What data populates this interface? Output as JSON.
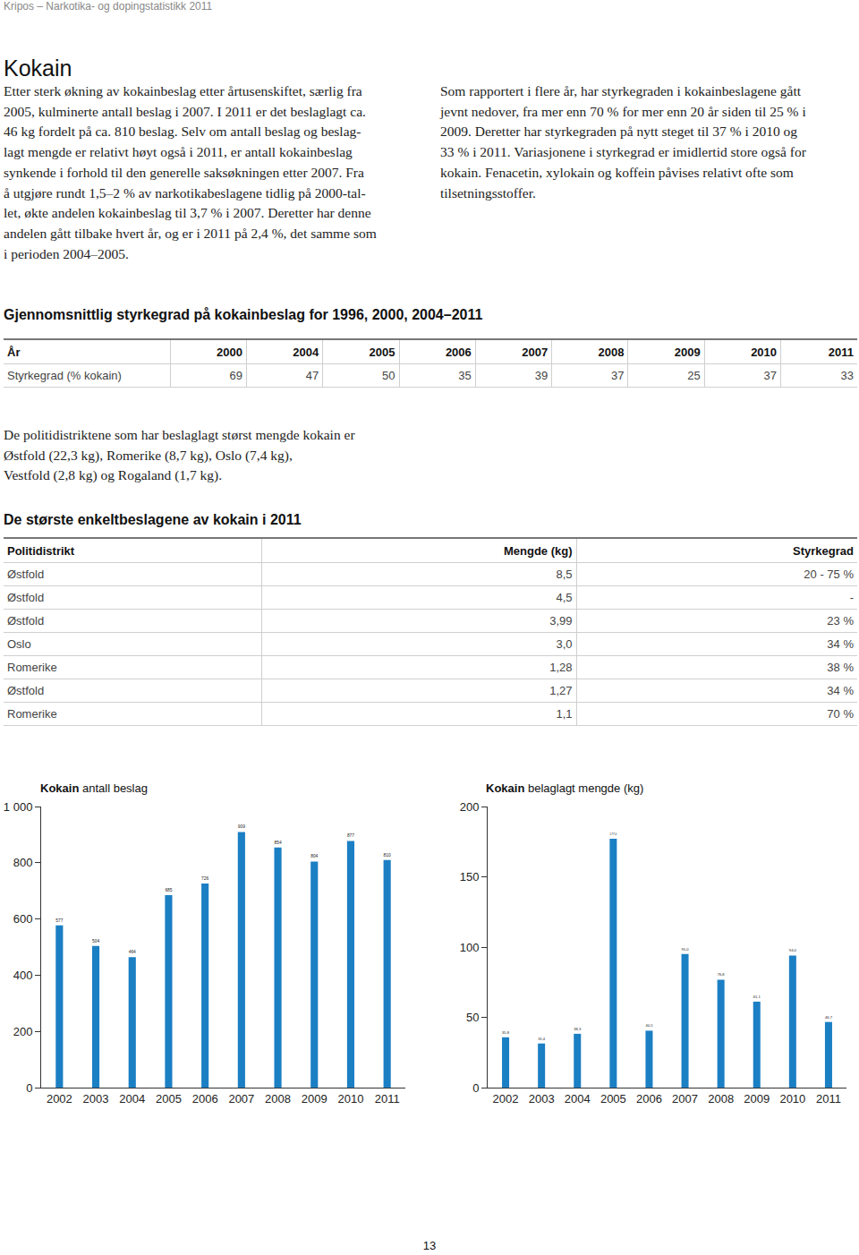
{
  "header": "Kripos – Narkotika- og dopingstatistikk 2011",
  "heading": "Kokain",
  "left_paragraph": [
    "Etter sterk økning av kokainbeslag etter årtusenskiftet, særlig fra",
    "2005, kulminerte antall beslag i 2007. I 2011 er det beslaglagt ca.",
    "46 kg fordelt på ca. 810 beslag. Selv om antall beslag og beslag-",
    "lagt mengde er relativt høyt også i 2011, er antall kokainbeslag",
    "synkende i forhold til den generelle saksøkningen etter 2007. Fra",
    "å utgjøre rundt 1,5–2 % av narkotikabeslagene tidlig på 2000-tal-",
    "let, økte andelen kokainbeslag til 3,7 % i 2007. Deretter har denne",
    "andelen gått tilbake hvert år, og er i 2011 på 2,4 %, det samme som",
    "i perioden 2004–2005."
  ],
  "right_paragraph": [
    "Som rapportert i flere år, har styrkegraden i kokainbeslagene gått",
    "jevnt nedover, fra mer enn 70 % for mer enn 20 år siden til 25 % i",
    "2009. Deretter har styrkegraden på nytt steget til 37 % i 2010 og",
    "33 % i 2011. Variasjonene i styrkegrad er imidlertid store også for",
    "kokain. Fenacetin, xylokain og koffein påvises relativt ofte som",
    "tilsetningsstoffer."
  ],
  "table1": {
    "title": "Gjennomsnittlig styrkegrad på kokainbeslag for 1996, 2000, 2004–2011",
    "header": [
      "År",
      "2000",
      "2004",
      "2005",
      "2006",
      "2007",
      "2008",
      "2009",
      "2010",
      "2011"
    ],
    "rows": [
      [
        "Styrkegrad (% kokain)",
        "69",
        "47",
        "50",
        "35",
        "39",
        "37",
        "25",
        "37",
        "33"
      ]
    ]
  },
  "middle_paragraph": [
    "De politidistriktene som har beslaglagt størst mengde kokain er",
    "Østfold (22,3 kg), Romerike (8,7 kg), Oslo (7,4 kg),",
    "Vestfold (2,8 kg) og Rogaland (1,7 kg)."
  ],
  "table2": {
    "title": "De største enkeltbeslagene av kokain i 2011",
    "header": [
      "Politidistrikt",
      "Mengde (kg)",
      "Styrkegrad"
    ],
    "rows": [
      [
        "Østfold",
        "8,5",
        "20 - 75 %"
      ],
      [
        "Østfold",
        "4,5",
        "-"
      ],
      [
        "Østfold",
        "3,99",
        "23 %"
      ],
      [
        "Oslo",
        "3,0",
        "34 %"
      ],
      [
        "Romerike",
        "1,28",
        "38 %"
      ],
      [
        "Østfold",
        "1,27",
        "34 %"
      ],
      [
        "Romerike",
        "1,1",
        "70 %"
      ]
    ]
  },
  "chart_data": [
    {
      "type": "bar",
      "title": "Kokain antall beslag",
      "categories": [
        "2002",
        "2003",
        "2004",
        "2005",
        "2006",
        "2007",
        "2008",
        "2009",
        "2010",
        "2011"
      ],
      "values": [
        577,
        504,
        464,
        685,
        726,
        909,
        854,
        804,
        877,
        810
      ],
      "color": "#1b7fc4",
      "ylim": [
        0,
        1000
      ],
      "yticks": [
        0,
        200,
        400,
        600,
        800,
        {
          "value": 1000,
          "label": "1 000"
        }
      ],
      "grid": false,
      "data_labels": true
    },
    {
      "type": "bar",
      "title": "Kokain belaglagt mengde (kg)",
      "categories": [
        "2002",
        "2003",
        "2004",
        "2005",
        "2006",
        "2007",
        "2008",
        "2009",
        "2010",
        "2011"
      ],
      "values": [
        35.8,
        31.4,
        38.3,
        177.0,
        40.5,
        95.0,
        76.8,
        61.1,
        94.0,
        46.7
      ],
      "value_labels": [
        "35,8",
        "31,4",
        "38,3",
        "177,0",
        "40,5",
        "95,0",
        "76,8",
        "61,1",
        "94,0",
        "46,7"
      ],
      "color": "#1b7fc4",
      "ylim": [
        0,
        200
      ],
      "yticks": [
        0,
        50,
        100,
        150,
        200
      ],
      "grid": false,
      "data_labels": true
    }
  ],
  "page_number": "13"
}
